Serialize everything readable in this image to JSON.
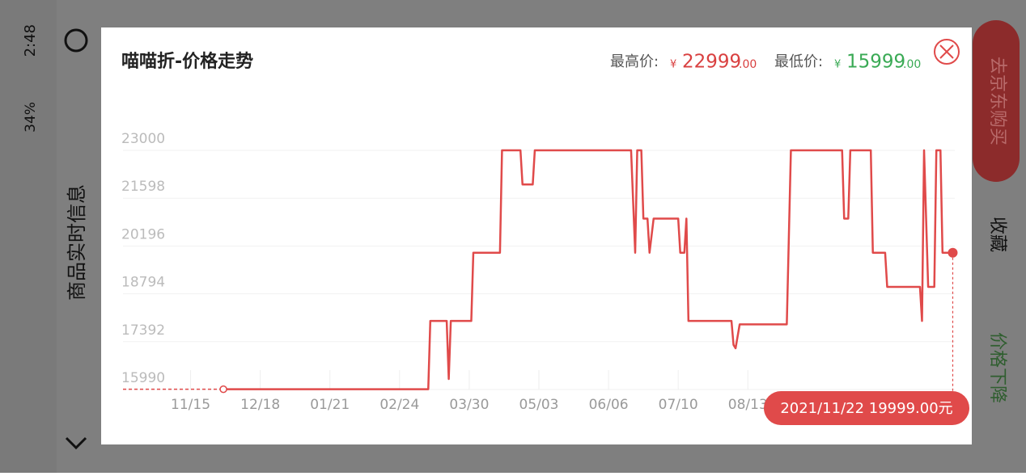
{
  "status_bar": {
    "time": "2:48",
    "battery": "34%"
  },
  "side_panel": {
    "title": "商品实时信息"
  },
  "right_panel": {
    "buy": "去京东购买",
    "favorite": "收藏",
    "price_drop": "价格下降"
  },
  "dialog": {
    "title": "喵喵折-价格走势",
    "max_price": {
      "label": "最高价:",
      "currency": "¥",
      "integer": "22999",
      "decimal": ".00"
    },
    "min_price": {
      "label": "最低价:",
      "currency": "¥",
      "integer": "15999",
      "decimal": ".00"
    },
    "badge": "2021/11/22 19999.00元"
  },
  "chart_data": {
    "type": "line",
    "color": "#e04a4a",
    "ylim": [
      15990,
      23000
    ],
    "yticks": [
      23000,
      21598,
      20196,
      18794,
      17392,
      15990
    ],
    "xlim": [
      -33,
      373
    ],
    "xticks": [
      {
        "value": 0,
        "label": "11/15"
      },
      {
        "value": 34,
        "label": "12/18"
      },
      {
        "value": 68,
        "label": "01/21"
      },
      {
        "value": 102,
        "label": "02/24"
      },
      {
        "value": 136,
        "label": "03/30"
      },
      {
        "value": 170,
        "label": "05/03"
      },
      {
        "value": 204,
        "label": "06/06"
      },
      {
        "value": 238,
        "label": "07/10"
      },
      {
        "value": 272,
        "label": "08/13"
      }
    ],
    "grid": true,
    "series": [
      {
        "name": null,
        "x": [
          16,
          116,
          117,
          125,
          126,
          127,
          137,
          138,
          151,
          152,
          161,
          162,
          167,
          168,
          215,
          217,
          218,
          220,
          221,
          223,
          224,
          226,
          238,
          239,
          241,
          242,
          243,
          264,
          265,
          266,
          268,
          291,
          293,
          318,
          319,
          321,
          322,
          332,
          333,
          339,
          340,
          356,
          357,
          358,
          360,
          363,
          364,
          366,
          367,
          372
        ],
        "values": [
          15999,
          15999,
          17999,
          17999,
          16299,
          17999,
          17999,
          19999,
          19999,
          22999,
          22999,
          21999,
          21999,
          22999,
          22999,
          19999,
          22999,
          22999,
          20999,
          20999,
          19999,
          20999,
          20999,
          19999,
          19999,
          20999,
          17999,
          17999,
          17299,
          17199,
          17899,
          17899,
          22999,
          22999,
          20999,
          20999,
          22999,
          22999,
          19999,
          19999,
          18999,
          18999,
          17999,
          22999,
          18999,
          18999,
          22999,
          22999,
          19999,
          19999
        ]
      }
    ]
  }
}
